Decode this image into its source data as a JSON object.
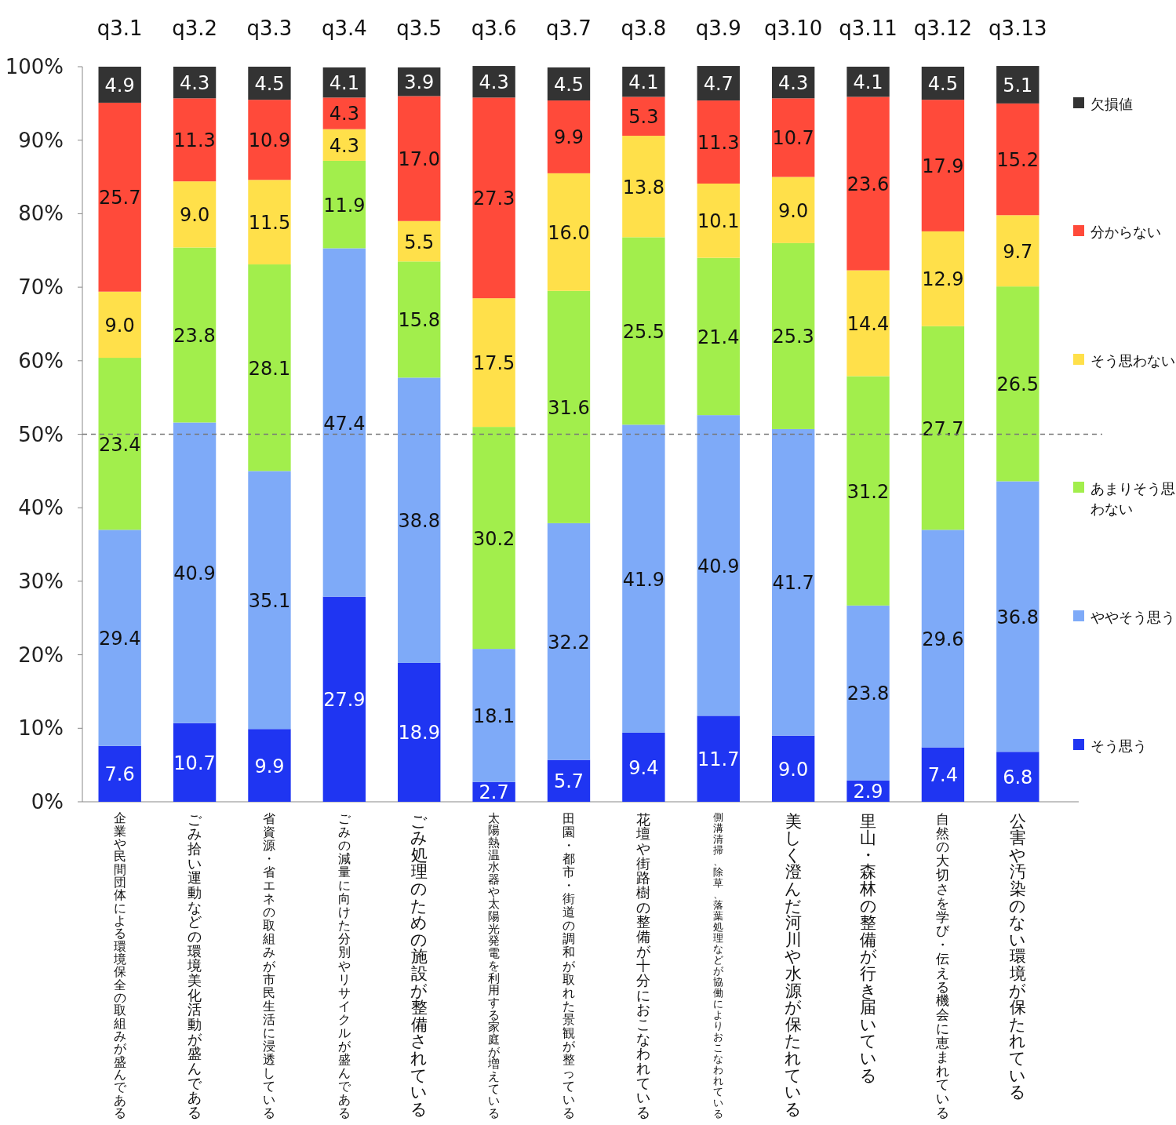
{
  "chart_data": {
    "type": "bar",
    "stacked": true,
    "categories": [
      "企業や民間団体による環境保全の取組みが盛んである",
      "ごみ拾い運動などの環境美化活動が盛んである",
      "省資源・省エネの取組みが市民生活に浸透している",
      "ごみの減量に向けた分別やリサイクルが盛んである",
      "ごみ処理のための施設が整備されている",
      "太陽熱温水器や太陽光発電を利用する家庭が増えている",
      "田園・都市・街道の調和が取れた景観が整っている",
      "花壇や街路樹の整備が十分におこなわれている",
      "側溝清掃、除草、落葉処理などが協働によりおこなわれている",
      "美しく澄んだ河川や水源が保たれている",
      "里山・森林の整備が行き届いている",
      "自然の大切さを学び・伝える機会に恵まれている",
      "公害や汚染のない環境が保たれている"
    ],
    "annotations": [
      "q3.1",
      "q3.2",
      "q3.3",
      "q3.4",
      "q3.5",
      "q3.6",
      "q3.7",
      "q3.8",
      "q3.9",
      "q3.10",
      "q3.11",
      "q3.12",
      "q3.13"
    ],
    "series": [
      {
        "name": "そう思う",
        "color": "#1f35f2",
        "values": [
          7.6,
          10.7,
          9.9,
          27.9,
          18.9,
          2.7,
          5.7,
          9.4,
          11.7,
          9.0,
          2.9,
          7.4,
          6.8
        ],
        "value_labels": [
          "7.6",
          "10.7",
          "9.9",
          "27.9",
          "18.9",
          "2.7",
          "5.7",
          "9.4",
          "11.7",
          "9.0",
          "2.9",
          "7.4",
          "6.8"
        ]
      },
      {
        "name": "ややそう思う",
        "color": "#7eaaf8",
        "values": [
          29.4,
          40.9,
          35.1,
          47.4,
          38.8,
          18.1,
          32.2,
          41.9,
          40.9,
          41.7,
          23.8,
          29.6,
          36.8
        ],
        "value_labels": [
          "29.4",
          "40.9",
          "35.1",
          "47.4",
          "38.8",
          "18.1",
          "32.2",
          "41.9",
          "40.9",
          "41.7",
          "23.8",
          "29.6",
          "36.8"
        ]
      },
      {
        "name": "あまりそう思わない",
        "color": "#a2ee4c",
        "values": [
          23.4,
          23.8,
          28.1,
          11.9,
          15.8,
          30.2,
          31.6,
          25.5,
          21.4,
          25.3,
          31.2,
          27.7,
          26.5
        ],
        "value_labels": [
          "23.4",
          "23.8",
          "28.1",
          "11.9",
          "15.8",
          "30.2",
          "31.6",
          "25.5",
          "21.4",
          "25.3",
          "31.2",
          "27.7",
          "26.5"
        ]
      },
      {
        "name": "そう思わない",
        "color": "#ffe04a",
        "values": [
          9.0,
          9.0,
          11.5,
          4.3,
          5.5,
          17.5,
          16.0,
          13.8,
          10.1,
          9.0,
          14.4,
          12.9,
          9.7
        ],
        "value_labels": [
          "9.0",
          "9.0",
          "11.5",
          "4.3",
          "5.5",
          "17.5",
          "16.0",
          "13.8",
          "10.1",
          "9.0",
          "14.4",
          "12.9",
          "9.7"
        ]
      },
      {
        "name": "分からない",
        "color": "#ff4a3a",
        "values": [
          25.7,
          11.3,
          10.9,
          4.3,
          17.0,
          27.3,
          9.9,
          5.3,
          11.3,
          10.7,
          23.6,
          17.9,
          15.2
        ],
        "value_labels": [
          "25.7",
          "11.3",
          "10.9",
          "4.3",
          "17.0",
          "27.3",
          "9.9",
          "5.3",
          "11.3",
          "10.7",
          "23.6",
          "17.9",
          "15.2"
        ]
      },
      {
        "name": "欠損値",
        "color": "#333333",
        "values": [
          4.9,
          4.3,
          4.5,
          4.1,
          3.9,
          4.3,
          4.5,
          4.1,
          4.7,
          4.3,
          4.1,
          4.5,
          5.1
        ],
        "value_labels": [
          "4.9",
          "4.3",
          "4.5",
          "4.1",
          "3.9",
          "4.3",
          "4.5",
          "4.1",
          "4.7",
          "4.3",
          "4.1",
          "4.5",
          "5.1"
        ]
      }
    ],
    "ylim": [
      0,
      100
    ],
    "yticks": [
      {
        "value": 0,
        "label": "0%"
      },
      {
        "value": 10,
        "label": "10%"
      },
      {
        "value": 20,
        "label": "20%"
      },
      {
        "value": 30,
        "label": "30%"
      },
      {
        "value": 40,
        "label": "40%"
      },
      {
        "value": 50,
        "label": "50%"
      },
      {
        "value": 60,
        "label": "60%"
      },
      {
        "value": 70,
        "label": "70%"
      },
      {
        "value": 80,
        "label": "80%"
      },
      {
        "value": 90,
        "label": "90%"
      },
      {
        "value": 100,
        "label": "100%"
      }
    ],
    "ref_lines": [
      {
        "axis": "y",
        "value": 50,
        "color": "#777777",
        "line_style": "dashed"
      }
    ],
    "grid": false,
    "legend": "right"
  }
}
